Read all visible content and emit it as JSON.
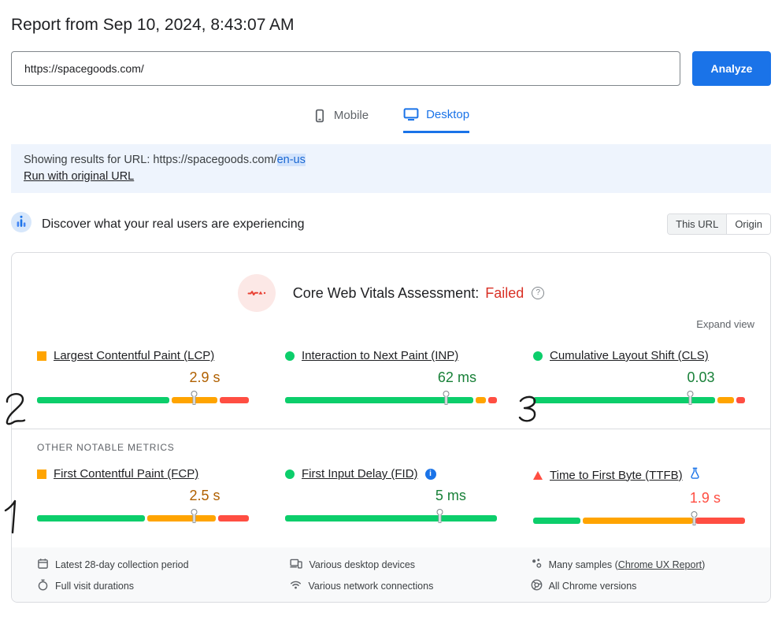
{
  "header": {
    "title": "Report from Sep 10, 2024, 8:43:07 AM"
  },
  "search": {
    "url_value": "https://spacegoods.com/",
    "analyze_label": "Analyze"
  },
  "tabs": {
    "mobile": "Mobile",
    "desktop": "Desktop"
  },
  "notice": {
    "prefix": "Showing results for URL: https://spacegoods.com/",
    "highlight": "en-us",
    "link": "Run with original URL"
  },
  "field_section": {
    "title": "Discover what your real users are experiencing",
    "toggle_this_url": "This URL",
    "toggle_origin": "Origin"
  },
  "cwv": {
    "assessment_label": "Core Web Vitals Assessment:",
    "assessment_value": "Failed",
    "expand_label": "Expand view",
    "other_metrics_label": "OTHER NOTABLE METRICS"
  },
  "metrics": {
    "core": [
      {
        "name": "Largest Contentful Paint (LCP)",
        "value": "2.9 s",
        "value_color": "#b06000",
        "icon": {
          "shape": "square",
          "color": "#ffa400"
        },
        "distribution": {
          "good": 64,
          "ni": 22,
          "poor": 14
        },
        "marker": 74
      },
      {
        "name": "Interaction to Next Paint (INP)",
        "value": "62 ms",
        "value_color": "#188038",
        "icon": {
          "shape": "circle",
          "color": "#0cce6b"
        },
        "distribution": {
          "good": 91,
          "ni": 5,
          "poor": 4
        },
        "marker": 76
      },
      {
        "name": "Cumulative Layout Shift (CLS)",
        "value": "0.03",
        "value_color": "#188038",
        "icon": {
          "shape": "circle",
          "color": "#0cce6b"
        },
        "distribution": {
          "good": 88,
          "ni": 8,
          "poor": 4
        },
        "marker": 74
      }
    ],
    "other": [
      {
        "name": "First Contentful Paint (FCP)",
        "value": "2.5 s",
        "value_color": "#b06000",
        "icon": {
          "shape": "square",
          "color": "#ffa400"
        },
        "distribution": {
          "good": 52,
          "ni": 33,
          "poor": 15
        },
        "marker": 74
      },
      {
        "name": "First Input Delay (FID)",
        "value": "5 ms",
        "value_color": "#188038",
        "icon": {
          "shape": "circle",
          "color": "#0cce6b"
        },
        "distribution": {
          "good": 100,
          "ni": 0,
          "poor": 0
        },
        "marker": 73
      },
      {
        "name": "Time to First Byte (TTFB)",
        "value": "1.9 s",
        "value_color": "#ff4e42",
        "icon": {
          "shape": "triangle",
          "color": "#ff4e42"
        },
        "distribution": {
          "good": 23,
          "ni": 53,
          "poor": 24
        },
        "marker": 76
      }
    ]
  },
  "footer": {
    "collection_period": "Latest 28-day collection period",
    "visit_durations": "Full visit durations",
    "devices": "Various desktop devices",
    "network": "Various network connections",
    "samples_prefix": "Many samples (",
    "samples_link": "Chrome UX Report",
    "samples_suffix": ")",
    "chrome_versions": "All Chrome versions"
  },
  "annotations": {
    "lcp_mark": "2",
    "cls_mark": "3",
    "fcp_mark": "1"
  },
  "colors": {
    "accent_blue": "#1a73e8",
    "good_green": "#0cce6b",
    "ni_orange": "#ffa400",
    "poor_red": "#ff4e42",
    "failed_red": "#d93025",
    "banner_blue": "#eef4fd"
  }
}
